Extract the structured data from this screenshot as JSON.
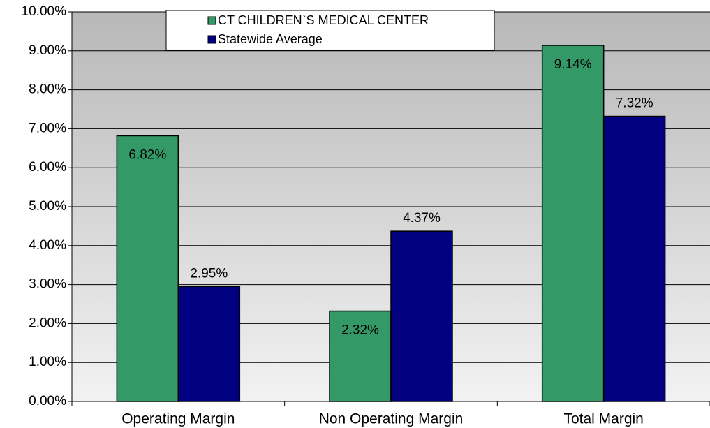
{
  "chart_data": {
    "type": "bar",
    "categories": [
      "Operating Margin",
      "Non Operating Margin",
      "Total Margin"
    ],
    "series": [
      {
        "name": "CT CHILDREN`S MEDICAL CENTER",
        "color": "#339966",
        "values": [
          6.82,
          2.32,
          9.14
        ],
        "value_labels": [
          "6.82%",
          "2.32%",
          "9.14%"
        ]
      },
      {
        "name": "Statewide Average",
        "color": "#000080",
        "values": [
          2.95,
          4.37,
          7.32
        ],
        "value_labels": [
          "2.95%",
          "4.37%",
          "7.32%"
        ]
      }
    ],
    "ylim": [
      0,
      10
    ],
    "yticks": [
      {
        "value": 0,
        "label": "0.00%"
      },
      {
        "value": 1,
        "label": "1.00%"
      },
      {
        "value": 2,
        "label": "2.00%"
      },
      {
        "value": 3,
        "label": "3.00%"
      },
      {
        "value": 4,
        "label": "4.00%"
      },
      {
        "value": 5,
        "label": "5.00%"
      },
      {
        "value": 6,
        "label": "6.00%"
      },
      {
        "value": 7,
        "label": "7.00%"
      },
      {
        "value": 8,
        "label": "8.00%"
      },
      {
        "value": 9,
        "label": "9.00%"
      },
      {
        "value": 10,
        "label": "10.00%"
      }
    ],
    "grid": true,
    "legend": "top"
  }
}
